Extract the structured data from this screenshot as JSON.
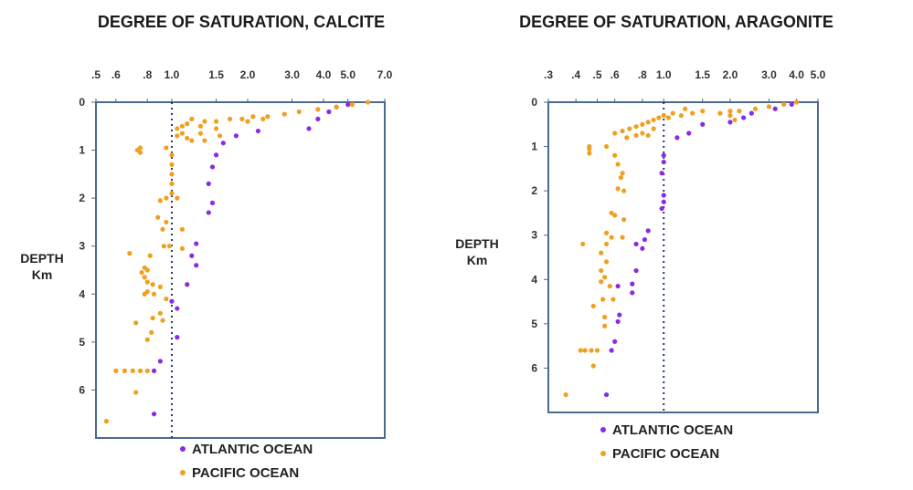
{
  "chart_data": [
    {
      "type": "scatter",
      "title": "DEGREE OF SATURATION, CALCITE",
      "xlabel": "",
      "ylabel": "DEPTH",
      "ylabel_unit": "Km",
      "x_scale": "log",
      "xlim": [
        0.5,
        7.0
      ],
      "ylim": [
        0,
        7
      ],
      "y_inverted": true,
      "x_tick_values": [
        0.5,
        0.6,
        0.8,
        1.0,
        1.5,
        2.0,
        3.0,
        4.0,
        5.0,
        7.0
      ],
      "x_tick_labels": [
        ".5",
        ".6",
        ".8",
        "1.0",
        "1.5",
        "2.0",
        "3.0",
        "4.0",
        "5.0",
        "7.0"
      ],
      "y_ticks": [
        "0",
        "1",
        "2",
        "3",
        "4",
        "5",
        "6"
      ],
      "reference_line_x": 1.0,
      "legend_position": "bottom",
      "series": [
        {
          "name": "ATLANTIC OCEAN",
          "color": "#8a2be2",
          "points": [
            [
              5.0,
              0.05
            ],
            [
              4.5,
              0.1
            ],
            [
              4.2,
              0.2
            ],
            [
              3.8,
              0.35
            ],
            [
              3.5,
              0.55
            ],
            [
              2.2,
              0.6
            ],
            [
              1.8,
              0.7
            ],
            [
              1.6,
              0.85
            ],
            [
              1.5,
              1.1
            ],
            [
              1.45,
              1.35
            ],
            [
              1.4,
              1.7
            ],
            [
              1.45,
              2.1
            ],
            [
              1.4,
              2.3
            ],
            [
              1.25,
              2.95
            ],
            [
              1.2,
              3.2
            ],
            [
              1.25,
              3.4
            ],
            [
              1.15,
              3.8
            ],
            [
              1.0,
              4.15
            ],
            [
              1.05,
              4.3
            ],
            [
              1.05,
              4.9
            ],
            [
              0.9,
              5.4
            ],
            [
              0.85,
              5.6
            ],
            [
              0.85,
              6.5
            ]
          ]
        },
        {
          "name": "PACIFIC OCEAN",
          "color": "#f0a020",
          "points": [
            [
              6.0,
              0.0
            ],
            [
              5.2,
              0.05
            ],
            [
              4.5,
              0.1
            ],
            [
              3.8,
              0.15
            ],
            [
              3.2,
              0.2
            ],
            [
              2.8,
              0.25
            ],
            [
              2.4,
              0.3
            ],
            [
              2.1,
              0.3
            ],
            [
              1.9,
              0.35
            ],
            [
              1.7,
              0.35
            ],
            [
              1.5,
              0.4
            ],
            [
              1.35,
              0.4
            ],
            [
              1.2,
              0.35
            ],
            [
              1.15,
              0.45
            ],
            [
              1.1,
              0.5
            ],
            [
              1.05,
              0.55
            ],
            [
              1.1,
              0.65
            ],
            [
              1.05,
              0.7
            ],
            [
              1.15,
              0.75
            ],
            [
              1.2,
              0.8
            ],
            [
              1.3,
              0.5
            ],
            [
              1.3,
              0.65
            ],
            [
              1.5,
              0.55
            ],
            [
              1.55,
              0.7
            ],
            [
              1.35,
              0.8
            ],
            [
              2.0,
              0.4
            ],
            [
              2.3,
              0.35
            ],
            [
              0.75,
              0.95
            ],
            [
              0.73,
              1.0
            ],
            [
              0.75,
              1.05
            ],
            [
              0.95,
              0.95
            ],
            [
              1.0,
              1.1
            ],
            [
              1.0,
              1.3
            ],
            [
              1.0,
              1.5
            ],
            [
              1.0,
              1.7
            ],
            [
              1.0,
              1.9
            ],
            [
              0.95,
              2.0
            ],
            [
              0.9,
              2.05
            ],
            [
              1.05,
              2.0
            ],
            [
              0.88,
              2.4
            ],
            [
              0.95,
              2.5
            ],
            [
              0.92,
              2.65
            ],
            [
              1.1,
              2.65
            ],
            [
              0.93,
              3.0
            ],
            [
              0.98,
              3.0
            ],
            [
              1.1,
              3.05
            ],
            [
              0.68,
              3.15
            ],
            [
              0.82,
              3.2
            ],
            [
              0.78,
              3.45
            ],
            [
              0.8,
              3.5
            ],
            [
              0.76,
              3.55
            ],
            [
              0.78,
              3.65
            ],
            [
              0.8,
              3.75
            ],
            [
              0.84,
              3.8
            ],
            [
              0.9,
              3.85
            ],
            [
              0.8,
              3.95
            ],
            [
              0.78,
              4.0
            ],
            [
              0.85,
              4.0
            ],
            [
              0.95,
              4.1
            ],
            [
              0.9,
              4.4
            ],
            [
              0.84,
              4.5
            ],
            [
              0.92,
              4.55
            ],
            [
              0.72,
              4.6
            ],
            [
              0.83,
              4.8
            ],
            [
              0.8,
              4.95
            ],
            [
              0.6,
              5.6
            ],
            [
              0.65,
              5.6
            ],
            [
              0.7,
              5.6
            ],
            [
              0.75,
              5.6
            ],
            [
              0.8,
              5.6
            ],
            [
              0.72,
              6.05
            ],
            [
              0.55,
              6.65
            ]
          ]
        }
      ]
    },
    {
      "type": "scatter",
      "title": "DEGREE OF SATURATION, ARAGONITE",
      "xlabel": "",
      "ylabel": "DEPTH",
      "ylabel_unit": "Km",
      "x_scale": "log",
      "xlim": [
        0.3,
        5.0
      ],
      "ylim": [
        0,
        7
      ],
      "y_inverted": true,
      "x_tick_values": [
        0.3,
        0.4,
        0.5,
        0.6,
        0.8,
        1.0,
        1.5,
        2.0,
        3.0,
        4.0,
        5.0
      ],
      "x_tick_labels": [
        ".3",
        ".4",
        ".5",
        ".6",
        ".8",
        "1.0",
        "1.5",
        "2.0",
        "3.0",
        "4.0",
        "5.0"
      ],
      "y_ticks": [
        "0",
        "1",
        "2",
        "3",
        "4",
        "5",
        "6"
      ],
      "reference_line_x": 1.0,
      "legend_position": "bottom",
      "series": [
        {
          "name": "ATLANTIC OCEAN",
          "color": "#8a2be2",
          "points": [
            [
              3.8,
              0.05
            ],
            [
              3.2,
              0.15
            ],
            [
              2.5,
              0.25
            ],
            [
              2.3,
              0.35
            ],
            [
              2.0,
              0.45
            ],
            [
              1.5,
              0.5
            ],
            [
              1.3,
              0.7
            ],
            [
              1.15,
              0.8
            ],
            [
              1.0,
              1.2
            ],
            [
              1.0,
              1.35
            ],
            [
              0.98,
              1.6
            ],
            [
              1.0,
              2.1
            ],
            [
              1.0,
              2.25
            ],
            [
              0.98,
              2.4
            ],
            [
              0.85,
              2.9
            ],
            [
              0.82,
              3.1
            ],
            [
              0.8,
              3.3
            ],
            [
              0.75,
              3.2
            ],
            [
              0.75,
              3.8
            ],
            [
              0.72,
              4.1
            ],
            [
              0.72,
              4.3
            ],
            [
              0.62,
              4.15
            ],
            [
              0.63,
              4.8
            ],
            [
              0.62,
              4.95
            ],
            [
              0.6,
              5.4
            ],
            [
              0.58,
              5.6
            ],
            [
              0.55,
              6.6
            ]
          ]
        },
        {
          "name": "PACIFIC OCEAN",
          "color": "#f0a020",
          "points": [
            [
              4.0,
              0.0
            ],
            [
              3.5,
              0.05
            ],
            [
              3.0,
              0.1
            ],
            [
              2.6,
              0.15
            ],
            [
              2.2,
              0.2
            ],
            [
              2.0,
              0.2
            ],
            [
              1.8,
              0.25
            ],
            [
              1.5,
              0.2
            ],
            [
              1.35,
              0.25
            ],
            [
              1.25,
              0.15
            ],
            [
              1.2,
              0.3
            ],
            [
              1.1,
              0.25
            ],
            [
              1.05,
              0.35
            ],
            [
              1.0,
              0.3
            ],
            [
              0.95,
              0.35
            ],
            [
              0.9,
              0.4
            ],
            [
              0.85,
              0.45
            ],
            [
              0.8,
              0.5
            ],
            [
              0.75,
              0.55
            ],
            [
              0.7,
              0.6
            ],
            [
              0.65,
              0.65
            ],
            [
              0.6,
              0.7
            ],
            [
              0.68,
              0.8
            ],
            [
              0.75,
              0.75
            ],
            [
              0.8,
              0.7
            ],
            [
              0.85,
              0.75
            ],
            [
              0.9,
              0.6
            ],
            [
              2.0,
              0.3
            ],
            [
              2.1,
              0.4
            ],
            [
              0.46,
              1.0
            ],
            [
              0.46,
              1.05
            ],
            [
              0.46,
              1.15
            ],
            [
              0.55,
              1.0
            ],
            [
              0.6,
              1.2
            ],
            [
              0.62,
              1.4
            ],
            [
              0.65,
              1.6
            ],
            [
              0.64,
              1.7
            ],
            [
              0.62,
              1.95
            ],
            [
              0.66,
              2.0
            ],
            [
              0.58,
              2.5
            ],
            [
              0.6,
              2.55
            ],
            [
              0.66,
              2.65
            ],
            [
              0.55,
              2.95
            ],
            [
              0.58,
              3.05
            ],
            [
              0.65,
              3.05
            ],
            [
              0.43,
              3.2
            ],
            [
              0.55,
              3.2
            ],
            [
              0.52,
              3.4
            ],
            [
              0.55,
              3.6
            ],
            [
              0.52,
              3.8
            ],
            [
              0.54,
              3.95
            ],
            [
              0.52,
              4.05
            ],
            [
              0.57,
              4.15
            ],
            [
              0.53,
              4.45
            ],
            [
              0.59,
              4.45
            ],
            [
              0.48,
              4.6
            ],
            [
              0.54,
              4.85
            ],
            [
              0.54,
              5.05
            ],
            [
              0.42,
              5.6
            ],
            [
              0.44,
              5.6
            ],
            [
              0.47,
              5.6
            ],
            [
              0.5,
              5.6
            ],
            [
              0.48,
              5.95
            ],
            [
              0.36,
              6.6
            ]
          ]
        }
      ]
    }
  ]
}
